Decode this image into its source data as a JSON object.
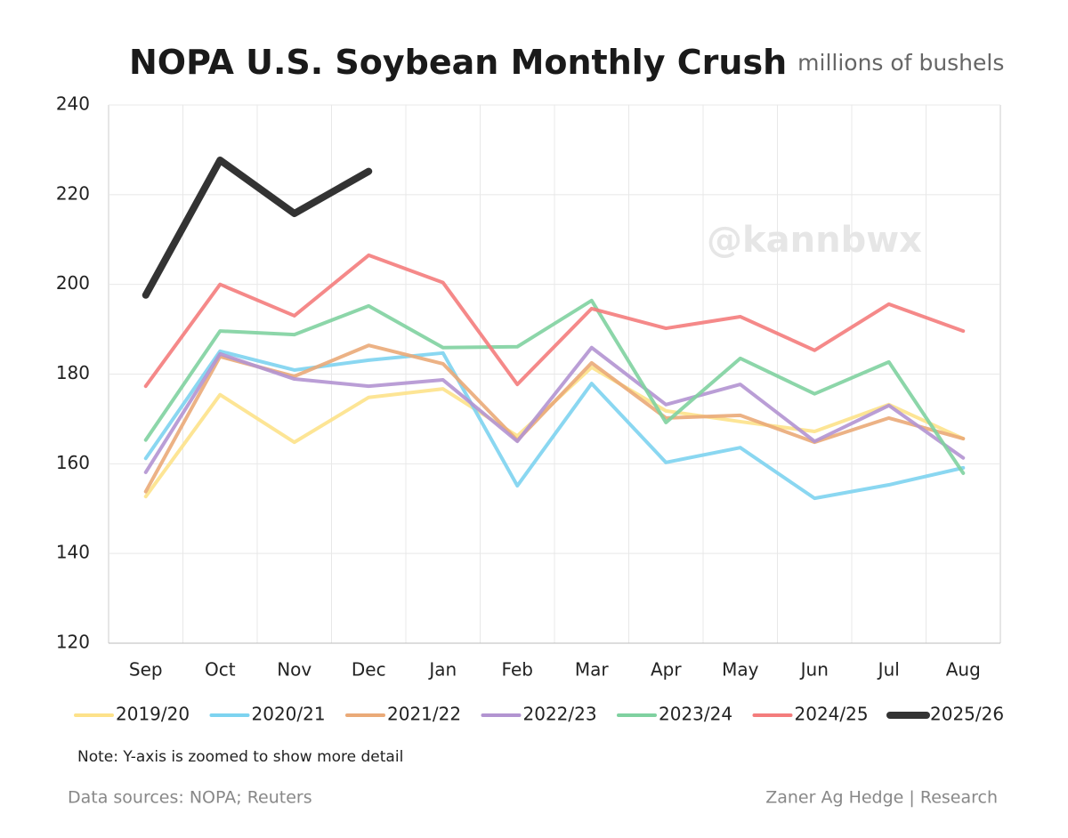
{
  "chart_data": {
    "type": "line",
    "title": "NOPA U.S. Soybean Monthly Crush",
    "subtitle": "millions of bushels",
    "watermark": "@kannbwx",
    "note": "Note: Y-axis is zoomed to show more detail",
    "source": "Data sources: NOPA; Reuters",
    "credit": "Zaner Ag Hedge | Research",
    "categories": [
      "Sep",
      "Oct",
      "Nov",
      "Dec",
      "Jan",
      "Feb",
      "Mar",
      "Apr",
      "May",
      "Jun",
      "Jul",
      "Aug"
    ],
    "ylim": [
      120,
      240
    ],
    "yticks": [
      120,
      140,
      160,
      180,
      200,
      220,
      240
    ],
    "grid": true,
    "legend": "bottom",
    "series": [
      {
        "name": "2019/20",
        "color": "#fde28a",
        "values": [
          152.7,
          175.4,
          164.8,
          174.8,
          176.7,
          166.2,
          181.5,
          171.8,
          169.4,
          167.2,
          173.2,
          165.6
        ]
      },
      {
        "name": "2020/21",
        "color": "#7dd3f0",
        "values": [
          161.2,
          185.1,
          180.9,
          183.1,
          184.7,
          155.1,
          177.9,
          160.3,
          163.6,
          152.3,
          155.3,
          159.1
        ]
      },
      {
        "name": "2021/22",
        "color": "#eaaa78",
        "values": [
          153.8,
          183.9,
          179.5,
          186.4,
          182.3,
          165.2,
          182.5,
          170.2,
          170.8,
          164.8,
          170.2,
          165.6
        ]
      },
      {
        "name": "2022/23",
        "color": "#b294d1",
        "values": [
          158.1,
          184.5,
          178.9,
          177.3,
          178.7,
          165.0,
          185.9,
          173.2,
          177.7,
          165.0,
          173.0,
          161.3
        ]
      },
      {
        "name": "2023/24",
        "color": "#7fd1a0",
        "values": [
          165.3,
          189.6,
          188.8,
          195.2,
          185.9,
          186.1,
          196.4,
          169.2,
          183.5,
          175.6,
          182.7,
          157.9
        ]
      },
      {
        "name": "2024/25",
        "color": "#f47c7c",
        "values": [
          177.3,
          200.0,
          193.0,
          206.5,
          200.4,
          177.7,
          194.6,
          190.2,
          192.8,
          185.3,
          195.6,
          189.6
        ]
      },
      {
        "name": "2025/26",
        "color": "#333333",
        "values": [
          197.6,
          227.7,
          215.8,
          225.2,
          null,
          null,
          null,
          null,
          null,
          null,
          null,
          null
        ]
      }
    ]
  }
}
